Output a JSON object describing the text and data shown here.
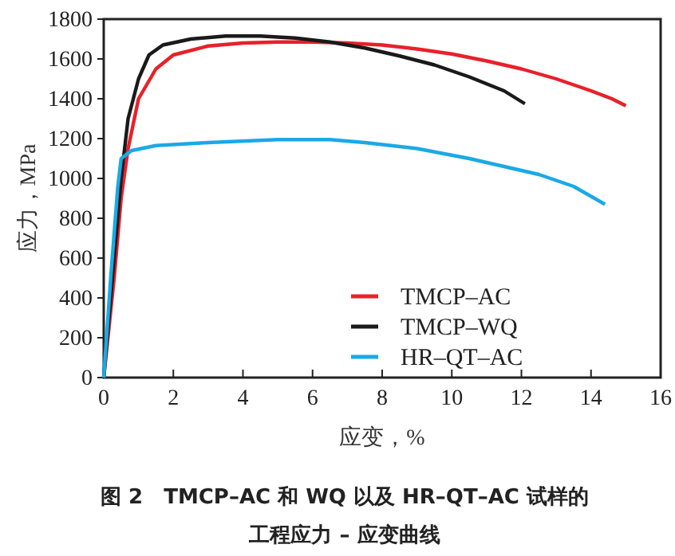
{
  "chart_data": {
    "type": "line",
    "title": "图 2　TMCP–AC 和 WQ 以及 HR–QT–AC 试样的",
    "subtitle": "工程应力 – 应变曲线",
    "xlabel": "应变，%",
    "ylabel": "应力，MPa",
    "xlim": [
      0,
      16
    ],
    "xticks": [
      0,
      2,
      4,
      6,
      8,
      10,
      12,
      14,
      16
    ],
    "ylim": [
      0,
      1800
    ],
    "yticks": [
      0,
      200,
      400,
      600,
      800,
      1000,
      1200,
      1400,
      1600,
      1800
    ],
    "grid": false,
    "legend": "bottom right",
    "marker": "none",
    "line_style": "solid",
    "series": [
      {
        "name": "TMCP–AC",
        "color": "#e8212a",
        "x": [
          0,
          0.3,
          0.5,
          0.7,
          1,
          1.5,
          2,
          3,
          4,
          5,
          6,
          7,
          8,
          9,
          10,
          11,
          12,
          13,
          14,
          14.6,
          15
        ],
        "values": [
          0,
          500,
          900,
          1150,
          1400,
          1550,
          1620,
          1665,
          1680,
          1685,
          1685,
          1680,
          1670,
          1650,
          1625,
          1590,
          1550,
          1500,
          1440,
          1400,
          1365
        ]
      },
      {
        "name": "TMCP–WQ",
        "color": "#1a1a1a",
        "x": [
          0,
          0.3,
          0.5,
          0.7,
          1,
          1.3,
          1.7,
          2.5,
          3.5,
          4.5,
          5.5,
          6.5,
          7.5,
          8.5,
          9.5,
          10.5,
          11.5,
          12.1
        ],
        "values": [
          0,
          600,
          1000,
          1300,
          1500,
          1620,
          1670,
          1700,
          1715,
          1715,
          1705,
          1685,
          1655,
          1615,
          1570,
          1510,
          1440,
          1375
        ]
      },
      {
        "name": "HR–QT–AC",
        "color": "#1aa9e6",
        "x": [
          0,
          0.2,
          0.4,
          0.5,
          0.8,
          1.5,
          3,
          5,
          6.5,
          7.5,
          9,
          10.5,
          11.5,
          12.5,
          13.5,
          14.4
        ],
        "values": [
          0,
          500,
          950,
          1100,
          1140,
          1165,
          1180,
          1195,
          1195,
          1180,
          1150,
          1100,
          1060,
          1020,
          960,
          870
        ]
      }
    ]
  }
}
